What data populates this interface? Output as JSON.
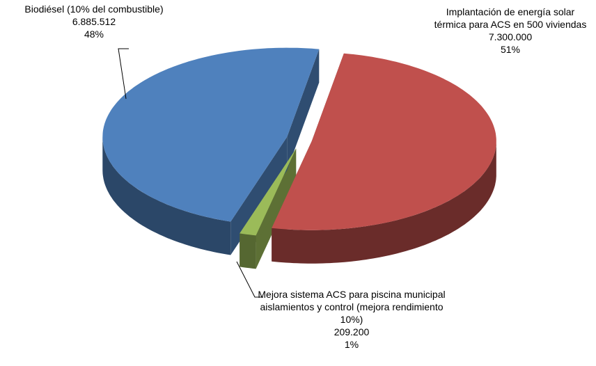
{
  "chart_data": {
    "type": "pie3d",
    "categories": [
      "Implantación de energía solar térmica para ACS en 500 viviendas",
      "Mejora sistema ACS para piscina municipal aislamientos y control (mejora rendimiento 10%)",
      "Biodiésel (10% del combustible)"
    ],
    "values": [
      7300000,
      209200,
      6885512
    ],
    "value_labels": [
      "7.300.000",
      "209.200",
      "6.885.512"
    ],
    "percent_labels": [
      "51%",
      "1%",
      "48%"
    ],
    "colors": [
      "#c0504d",
      "#9bbb59",
      "#4f81bd"
    ]
  }
}
